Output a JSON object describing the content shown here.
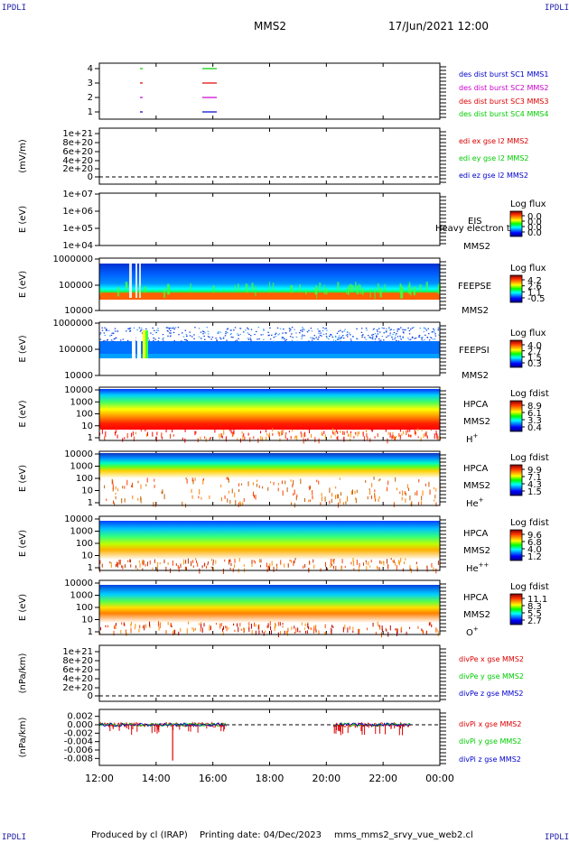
{
  "header": {
    "corner_tl": "IPDLI",
    "corner_tr": "IPDLI",
    "corner_bl": "IPDLI",
    "corner_br": "IPDLI",
    "spacecraft": "MMS2",
    "datetime": "17/Jun/2021 12:00"
  },
  "footer": {
    "produced": "Produced by cl (IRAP)",
    "printing": "Printing date: 04/Dec/2023",
    "file": "mms_mms2_srvy_vue_web2.cl"
  },
  "colors": {
    "red": "#dd0000",
    "green": "#00cc00",
    "blue": "#0000cc",
    "magenta": "#cc00cc",
    "frame": "#000000"
  },
  "chart_data": [
    {
      "type": "scatter",
      "panel": "burst",
      "y_ticks": [
        "4",
        "3",
        "2",
        "1"
      ],
      "legend": [
        {
          "label": "des dist burst SC1 MMS1",
          "color": "#0000cc"
        },
        {
          "label": "des dist burst SC2 MMS2",
          "color": "#cc00cc"
        },
        {
          "label": "des dist burst SC3 MMS3",
          "color": "#dd0000"
        },
        {
          "label": "des dist burst SC4 MMS4",
          "color": "#00cc00"
        }
      ]
    },
    {
      "type": "line",
      "panel": "edi",
      "ylabel": "(mV/m)",
      "y_ticks": [
        "1e+21",
        "8e+20",
        "6e+20",
        "4e+20",
        "2e+20",
        "0"
      ],
      "legend": [
        {
          "label": "edi ex gse l2 MMS2",
          "color": "#dd0000"
        },
        {
          "label": "edi ey gse l2 MMS2",
          "color": "#00cc00"
        },
        {
          "label": "edi ez gse l2 MMS2",
          "color": "#0000cc"
        }
      ]
    },
    {
      "type": "heatmap",
      "panel": "eis",
      "ylabel": "E (eV)",
      "y_ticks": [
        "1e+07",
        "1e+06",
        "1e+05",
        "1e+04"
      ],
      "instrument": "EIS",
      "subtitle": "Heavy electron to",
      "spacecraft": "MMS2",
      "colorbar_title": "Log flux",
      "colorbar_ticks": [
        "0.0",
        "0.0",
        "0.0",
        "0.0"
      ]
    },
    {
      "type": "heatmap",
      "panel": "feepse",
      "ylabel": "E (eV)",
      "y_ticks": [
        "1000000",
        "100000",
        "10000"
      ],
      "instrument": "FEEPSE",
      "spacecraft": "MMS2",
      "colorbar_title": "Log flux",
      "colorbar_ticks": [
        "4.2",
        "2.6",
        "1.1",
        "-0.5"
      ]
    },
    {
      "type": "heatmap",
      "panel": "feepsi",
      "ylabel": "E (eV)",
      "y_ticks": [
        "1000000",
        "100000",
        "10000"
      ],
      "instrument": "FEEPSI",
      "spacecraft": "MMS2",
      "colorbar_title": "Log flux",
      "colorbar_ticks": [
        "4.0",
        "2.7",
        "1.5",
        "0.3"
      ]
    },
    {
      "type": "heatmap",
      "panel": "hpca_h",
      "ylabel": "E (eV)",
      "y_ticks": [
        "10000",
        "1000",
        "100",
        "10",
        "1"
      ],
      "instrument": "HPCA",
      "spacecraft": "MMS2",
      "species": "H",
      "species_sup": "+",
      "colorbar_title": "Log fdist",
      "colorbar_ticks": [
        "8.9",
        "6.1",
        "3.3",
        "0.4"
      ]
    },
    {
      "type": "heatmap",
      "panel": "hpca_he",
      "ylabel": "E (eV)",
      "y_ticks": [
        "10000",
        "1000",
        "100",
        "10",
        "1"
      ],
      "instrument": "HPCA",
      "spacecraft": "MMS2",
      "species": "He",
      "species_sup": "+",
      "colorbar_title": "Log fdist",
      "colorbar_ticks": [
        "9.9",
        "7.1",
        "4.3",
        "1.5"
      ]
    },
    {
      "type": "heatmap",
      "panel": "hpca_hepp",
      "ylabel": "E (eV)",
      "y_ticks": [
        "10000",
        "1000",
        "100",
        "10",
        "1"
      ],
      "instrument": "HPCA",
      "spacecraft": "MMS2",
      "species": "He",
      "species_sup": "++",
      "colorbar_title": "Log fdist",
      "colorbar_ticks": [
        "9.6",
        "6.8",
        "4.0",
        "1.2"
      ]
    },
    {
      "type": "heatmap",
      "panel": "hpca_o",
      "ylabel": "E (eV)",
      "y_ticks": [
        "10000",
        "1000",
        "100",
        "10",
        "1"
      ],
      "instrument": "HPCA",
      "spacecraft": "MMS2",
      "species": "O",
      "species_sup": "+",
      "colorbar_title": "Log fdist",
      "colorbar_ticks": [
        "11.1",
        "8.3",
        "5.5",
        "2.7"
      ]
    },
    {
      "type": "line",
      "panel": "divpe",
      "ylabel": "(nPa/km)",
      "y_ticks": [
        "1e+21",
        "8e+20",
        "6e+20",
        "4e+20",
        "2e+20",
        "0"
      ],
      "legend": [
        {
          "label": "divPe x gse MMS2",
          "color": "#dd0000"
        },
        {
          "label": "divPe y gse MMS2",
          "color": "#00cc00"
        },
        {
          "label": "divPe z gse MMS2",
          "color": "#0000cc"
        }
      ]
    },
    {
      "type": "line",
      "panel": "divpi",
      "ylabel": "(nPa/km)",
      "y_ticks": [
        "0.002",
        "0.000",
        "-0.002",
        "-0.004",
        "-0.006",
        "-0.008"
      ],
      "ylim": [
        -0.009,
        0.003
      ],
      "legend": [
        {
          "label": "divPi x gse MMS2",
          "color": "#dd0000"
        },
        {
          "label": "divPi y gse MMS2",
          "color": "#00cc00"
        },
        {
          "label": "divPi z gse MMS2",
          "color": "#0000cc"
        }
      ],
      "data_intervals": [
        [
          "12:00",
          "16:30"
        ],
        [
          "20:15",
          "23:00"
        ]
      ],
      "spike": {
        "time": "14:35",
        "value": -0.0085
      }
    }
  ],
  "x_axis": {
    "ticks": [
      "12:00",
      "14:00",
      "16:00",
      "18:00",
      "20:00",
      "22:00",
      "00:00"
    ],
    "range_hours": [
      12,
      24
    ]
  }
}
